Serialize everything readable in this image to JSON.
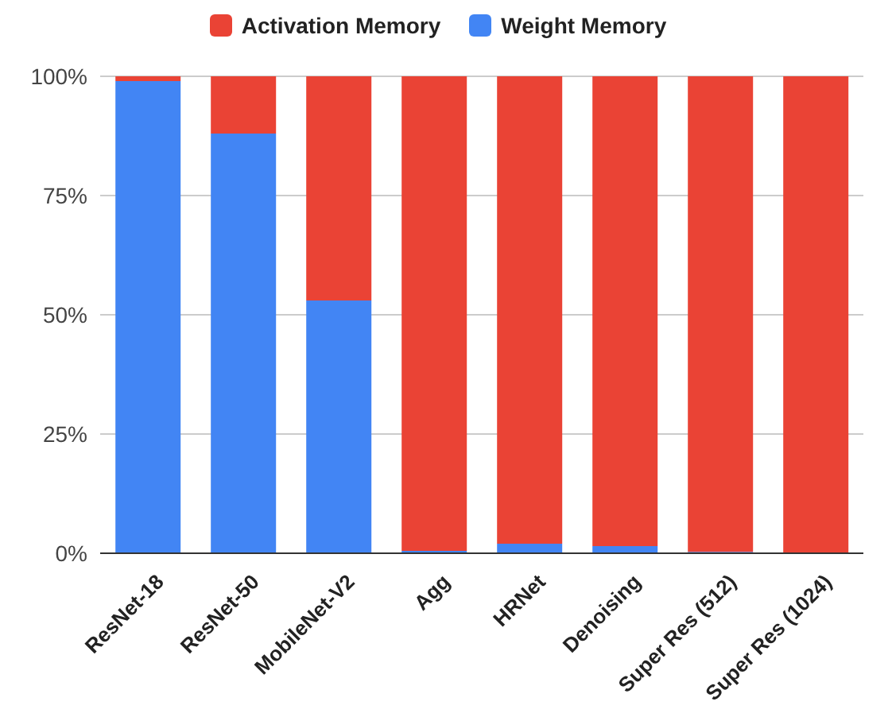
{
  "chart_data": {
    "type": "bar",
    "stacked": true,
    "categories": [
      "ResNet-18",
      "ResNet-50",
      "MobileNet-V2",
      "Agg",
      "HRNet",
      "Denoising",
      "Super Res (512)",
      "Super Res (1024)"
    ],
    "series": [
      {
        "name": "Weight Memory",
        "color": "#4285f4",
        "values": [
          99,
          88,
          53,
          0.5,
          2,
          1.5,
          0.3,
          0
        ]
      },
      {
        "name": "Activation Memory",
        "color": "#ea4335",
        "values": [
          1,
          12,
          47,
          99.5,
          98,
          98.5,
          99.7,
          100
        ]
      }
    ],
    "ylim": [
      0,
      100
    ],
    "yticks": [
      {
        "value": 0,
        "label": "0%"
      },
      {
        "value": 25,
        "label": "25%"
      },
      {
        "value": 50,
        "label": "50%"
      },
      {
        "value": 75,
        "label": "75%"
      },
      {
        "value": 100,
        "label": "100%"
      }
    ],
    "grid": "y",
    "legend": "top"
  }
}
